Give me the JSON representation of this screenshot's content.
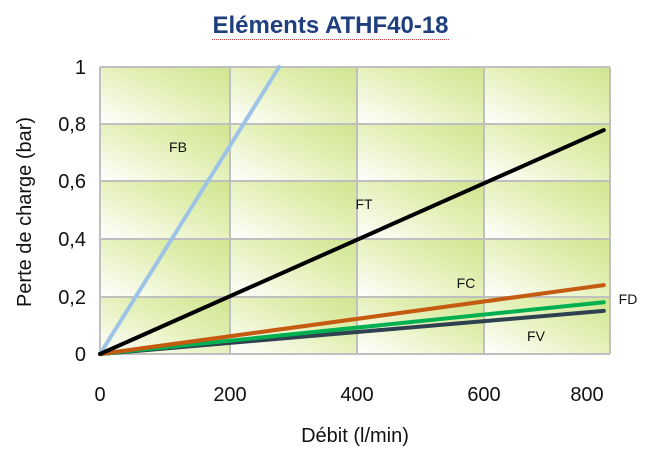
{
  "chart_data": {
    "type": "line",
    "title": "Eléments ATHF40-18",
    "xlabel": "Débit (l/min)",
    "ylabel": "Perte de charge (bar)",
    "xlim": [
      0,
      820
    ],
    "ylim": [
      0,
      1
    ],
    "x_ticks": [
      0,
      200,
      400,
      600,
      800
    ],
    "y_ticks": [
      0,
      0.2,
      0.4,
      0.6,
      0.8,
      1
    ],
    "x_tick_labels": [
      "0",
      "200",
      "400",
      "600",
      "800"
    ],
    "y_tick_labels": [
      "0",
      "0,2",
      "0,4",
      "0,6",
      "0,8",
      "1"
    ],
    "grid": true,
    "series": [
      {
        "name": "FB",
        "color": "#9dc3e6",
        "points": [
          [
            0,
            0
          ],
          [
            288,
            1.0
          ]
        ]
      },
      {
        "name": "FT",
        "color": "#000000",
        "points": [
          [
            0,
            0
          ],
          [
            810,
            0.78
          ]
        ]
      },
      {
        "name": "FC",
        "color": "#c55a11",
        "points": [
          [
            0,
            0
          ],
          [
            810,
            0.24
          ]
        ]
      },
      {
        "name": "FD",
        "color": "#00b050",
        "points": [
          [
            0,
            0
          ],
          [
            810,
            0.18
          ]
        ]
      },
      {
        "name": "FV",
        "color": "#2f4050",
        "points": [
          [
            0,
            0
          ],
          [
            810,
            0.15
          ]
        ]
      }
    ]
  }
}
